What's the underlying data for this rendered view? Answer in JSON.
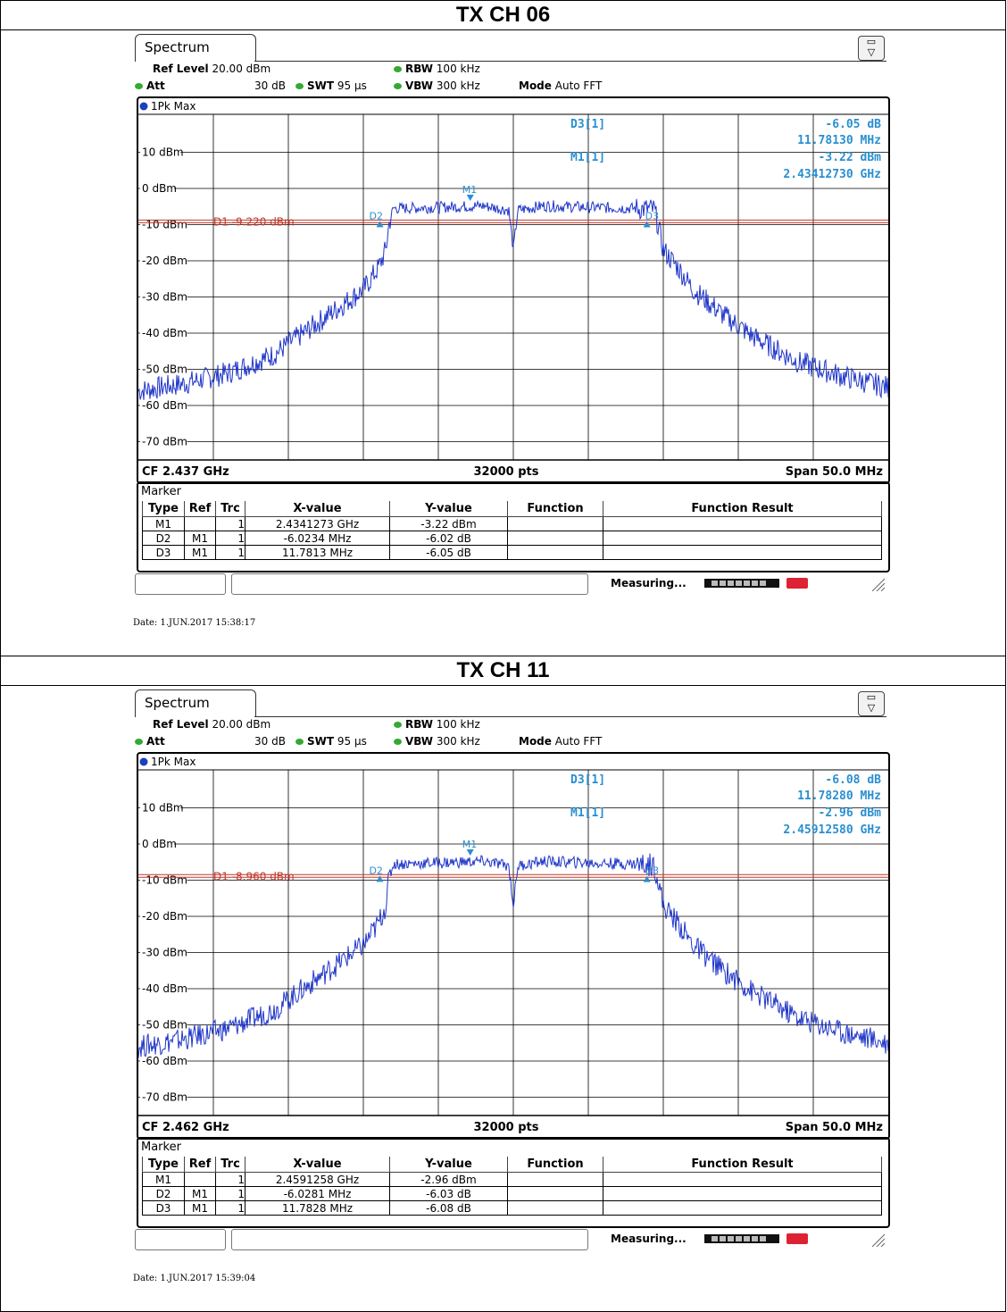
{
  "panels": [
    {
      "title": "TX CH 06",
      "tab_label": "Spectrum",
      "ref_level_label": "Ref Level",
      "ref_level_value": "20.00 dBm",
      "att_label": "Att",
      "att_value": "30 dB",
      "swt_label": "SWT",
      "swt_value": "95 µs",
      "rbw_label": "RBW",
      "rbw_value": "100 kHz",
      "vbw_label": "VBW",
      "vbw_value": "300 kHz",
      "mode_label": "Mode",
      "mode_value": "Auto FFT",
      "trace_label": "1Pk Max",
      "cf_label": "CF 2.437 GHz",
      "pts_label": "32000 pts",
      "span_label": "Span 50.0 MHz",
      "readout": {
        "d3_name": "D3[1]",
        "d3_db": "-6.05 dB",
        "d3_freq": "11.78130 MHz",
        "m1_name": "M1[1]",
        "m1_dbm": "-3.22 dBm",
        "m1_freq": "2.43412730 GHz"
      },
      "d1_line_label": "D1  -9.220 dBm",
      "marker_title": "Marker",
      "marker_headers": [
        "Type",
        "Ref",
        "Trc",
        "X-value",
        "Y-value",
        "Function",
        "Function Result"
      ],
      "marker_rows": [
        {
          "type": "M1",
          "ref": "",
          "trc": "1",
          "x": "2.4341273 GHz",
          "y": "-3.22 dBm",
          "func": "",
          "result": ""
        },
        {
          "type": "D2",
          "ref": "M1",
          "trc": "1",
          "x": "-6.0234 MHz",
          "y": "-6.02 dB",
          "func": "",
          "result": ""
        },
        {
          "type": "D3",
          "ref": "M1",
          "trc": "1",
          "x": "11.7813 MHz",
          "y": "-6.05 dB",
          "func": "",
          "result": ""
        }
      ],
      "status_text": "Measuring...",
      "date": "Date: 1.JUN.2017  15:38:17"
    },
    {
      "title": "TX CH 11",
      "tab_label": "Spectrum",
      "ref_level_label": "Ref Level",
      "ref_level_value": "20.00 dBm",
      "att_label": "Att",
      "att_value": "30 dB",
      "swt_label": "SWT",
      "swt_value": "95 µs",
      "rbw_label": "RBW",
      "rbw_value": "100 kHz",
      "vbw_label": "VBW",
      "vbw_value": "300 kHz",
      "mode_label": "Mode",
      "mode_value": "Auto FFT",
      "trace_label": "1Pk Max",
      "cf_label": "CF 2.462 GHz",
      "pts_label": "32000 pts",
      "span_label": "Span 50.0 MHz",
      "readout": {
        "d3_name": "D3[1]",
        "d3_db": "-6.08 dB",
        "d3_freq": "11.78280 MHz",
        "m1_name": "M1[1]",
        "m1_dbm": "-2.96 dBm",
        "m1_freq": "2.45912580 GHz"
      },
      "d1_line_label": "D1  -8.960 dBm",
      "marker_title": "Marker",
      "marker_headers": [
        "Type",
        "Ref",
        "Trc",
        "X-value",
        "Y-value",
        "Function",
        "Function Result"
      ],
      "marker_rows": [
        {
          "type": "M1",
          "ref": "",
          "trc": "1",
          "x": "2.4591258 GHz",
          "y": "-2.96 dBm",
          "func": "",
          "result": ""
        },
        {
          "type": "D2",
          "ref": "M1",
          "trc": "1",
          "x": "-6.0281 MHz",
          "y": "-6.03 dB",
          "func": "",
          "result": ""
        },
        {
          "type": "D3",
          "ref": "M1",
          "trc": "1",
          "x": "11.7828 MHz",
          "y": "-6.08 dB",
          "func": "",
          "result": ""
        }
      ],
      "status_text": "Measuring...",
      "date": "Date: 1.JUN.2017  15:39:04"
    }
  ],
  "chart_data": [
    {
      "type": "line",
      "title": "TX CH 06",
      "xlabel": "",
      "ylabel": "",
      "x_unit": "MHz offset from CF",
      "xlim": [
        -25,
        25
      ],
      "ylim": [
        -80,
        20
      ],
      "y_ticks": [
        10,
        0,
        -10,
        -20,
        -30,
        -40,
        -50,
        -60,
        -70
      ],
      "y_tick_labels": [
        "10 dBm",
        "0 dBm",
        "-10 dBm",
        "-20 dBm",
        "-30 dBm",
        "-40 dBm",
        "-50 dBm",
        "-60 dBm",
        "-70 dBm"
      ],
      "grid": true,
      "reference_line": {
        "label": "D1",
        "value": -9.22
      },
      "series": [
        {
          "x": [
            -25,
            -22,
            -19,
            -16,
            -14,
            -12,
            -10,
            -9,
            -8.5,
            -8.3,
            -8.0,
            -7.5,
            -5,
            -2,
            -0.3,
            0.0,
            0.3,
            2,
            5,
            8,
            9.4,
            9.7,
            10,
            11,
            12,
            14,
            16,
            19,
            22,
            25
          ],
          "y": [
            -56,
            -54,
            -51,
            -46,
            -40,
            -34,
            -28,
            -22,
            -17,
            -10,
            -5.5,
            -5.5,
            -5.2,
            -4.8,
            -6,
            -17,
            -6,
            -4.8,
            -5.2,
            -5.5,
            -5.8,
            -11,
            -17,
            -22,
            -28,
            -35,
            -41,
            -48,
            -52,
            -55
          ]
        }
      ],
      "markers": [
        {
          "name": "M1",
          "x": -2.873,
          "y": -3.22
        },
        {
          "name": "D2",
          "x": -8.896,
          "y": -9.24
        },
        {
          "name": "D3",
          "x": 8.908,
          "y": -9.27
        }
      ],
      "cf": "2.437 GHz",
      "span": "50.0 MHz",
      "points": 32000
    },
    {
      "type": "line",
      "title": "TX CH 11",
      "xlabel": "",
      "ylabel": "",
      "x_unit": "MHz offset from CF",
      "xlim": [
        -25,
        25
      ],
      "ylim": [
        -80,
        20
      ],
      "y_ticks": [
        10,
        0,
        -10,
        -20,
        -30,
        -40,
        -50,
        -60,
        -70
      ],
      "y_tick_labels": [
        "10 dBm",
        "0 dBm",
        "-10 dBm",
        "-20 dBm",
        "-30 dBm",
        "-40 dBm",
        "-50 dBm",
        "-60 dBm",
        "-70 dBm"
      ],
      "grid": true,
      "reference_line": {
        "label": "D1",
        "value": -8.96
      },
      "series": [
        {
          "x": [
            -25,
            -22,
            -19,
            -16,
            -14,
            -12,
            -10,
            -9,
            -8.5,
            -8.3,
            -8.0,
            -7.5,
            -5,
            -2,
            -0.3,
            0.0,
            0.3,
            2,
            5,
            8,
            9.4,
            9.7,
            10,
            11,
            12,
            14,
            16,
            19,
            22,
            25
          ],
          "y": [
            -56,
            -54,
            -51,
            -46,
            -40,
            -34,
            -28,
            -22,
            -17,
            -10,
            -5.5,
            -5.5,
            -5.2,
            -4.8,
            -6,
            -17,
            -6,
            -4.8,
            -5.2,
            -5.5,
            -5.8,
            -11,
            -17,
            -22,
            -28,
            -35,
            -41,
            -48,
            -52,
            -55
          ]
        }
      ],
      "markers": [
        {
          "name": "M1",
          "x": -2.874,
          "y": -2.96
        },
        {
          "name": "D2",
          "x": -8.902,
          "y": -8.99
        },
        {
          "name": "D3",
          "x": 8.909,
          "y": -9.04
        }
      ],
      "cf": "2.462 GHz",
      "span": "50.0 MHz",
      "points": 32000
    }
  ]
}
